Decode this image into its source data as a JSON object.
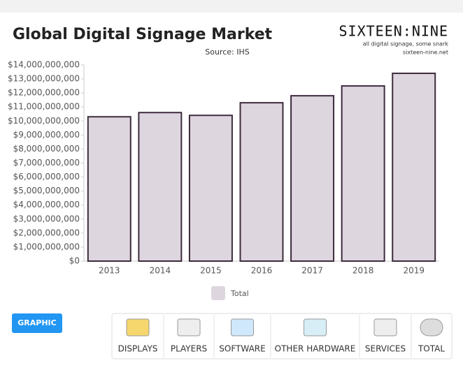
{
  "chart_data": {
    "type": "bar",
    "title": "Global Digital Signage Market",
    "subtitle": "Source: IHS",
    "categories": [
      "2013",
      "2014",
      "2015",
      "2016",
      "2017",
      "2018",
      "2019"
    ],
    "series": [
      {
        "name": "Total",
        "color": "#ddd6de",
        "values": [
          10300000000,
          10600000000,
          10400000000,
          11300000000,
          11800000000,
          12500000000,
          13400000000
        ]
      }
    ],
    "ylim": [
      0,
      14000000000
    ],
    "yticks": [
      {
        "value": 0,
        "label": "$0"
      },
      {
        "value": 1000000000,
        "label": "$1,000,000,000"
      },
      {
        "value": 2000000000,
        "label": "$2,000,000,000"
      },
      {
        "value": 3000000000,
        "label": "$3,000,000,000"
      },
      {
        "value": 4000000000,
        "label": "$4,000,000,000"
      },
      {
        "value": 5000000000,
        "label": "$5,000,000,000"
      },
      {
        "value": 6000000000,
        "label": "$6,000,000,000"
      },
      {
        "value": 7000000000,
        "label": "$7,000,000,000"
      },
      {
        "value": 8000000000,
        "label": "$8,000,000,000"
      },
      {
        "value": 9000000000,
        "label": "$9,000,000,000"
      },
      {
        "value": 10000000000,
        "label": "$10,000,000,000"
      },
      {
        "value": 11000000000,
        "label": "$11,000,000,000"
      },
      {
        "value": 12000000000,
        "label": "$12,000,000,000"
      },
      {
        "value": 13000000000,
        "label": "$13,000,000,000"
      },
      {
        "value": 14000000000,
        "label": "$14,000,000,000"
      }
    ],
    "grid": false,
    "legend": "bottom"
  },
  "brand": {
    "name": "SIXTEEN:NINE",
    "tagline": "all digital signage, some snark",
    "url": "sixteen-nine.net"
  },
  "button": "GRAPHIC",
  "tabs": [
    "DISPLAYS",
    "PLAYERS",
    "SOFTWARE",
    "OTHER HARDWARE",
    "SERVICES",
    "TOTAL"
  ]
}
